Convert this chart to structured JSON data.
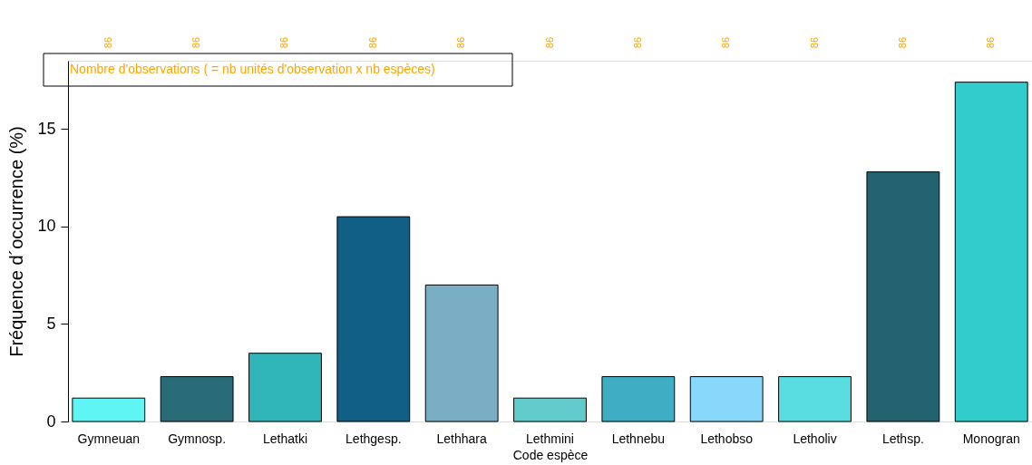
{
  "chart_data": {
    "type": "bar",
    "xlabel": "Code espèce",
    "ylabel": "Fréquence d´occurrence (%)",
    "categories": [
      "Gymneuan",
      "Gymnosp.",
      "Lethatki",
      "Lethgesp.",
      "Lethhara",
      "Lethmini",
      "Lethnebu",
      "Lethobso",
      "Letholiv",
      "Lethsp.",
      "Monogran"
    ],
    "values": [
      1.2,
      2.3,
      3.5,
      10.5,
      7.0,
      1.2,
      2.3,
      2.3,
      2.3,
      12.8,
      17.4
    ],
    "colors": [
      "#5ff5f5",
      "#2a6b78",
      "#30b5b8",
      "#115f84",
      "#7aaec4",
      "#62cccc",
      "#3faec4",
      "#87d8fb",
      "#5adde0",
      "#22636f",
      "#33cccc"
    ],
    "ylim": [
      0,
      18.5
    ],
    "yticks": [
      0,
      5,
      10,
      15
    ],
    "grid": false,
    "annotations": [
      "Nombre d'observations ( = nb unités d'observation x nb espèces)",
      "86",
      "86",
      "86",
      "86",
      "86",
      "86",
      "86",
      "86",
      "86",
      "86",
      "86"
    ]
  }
}
